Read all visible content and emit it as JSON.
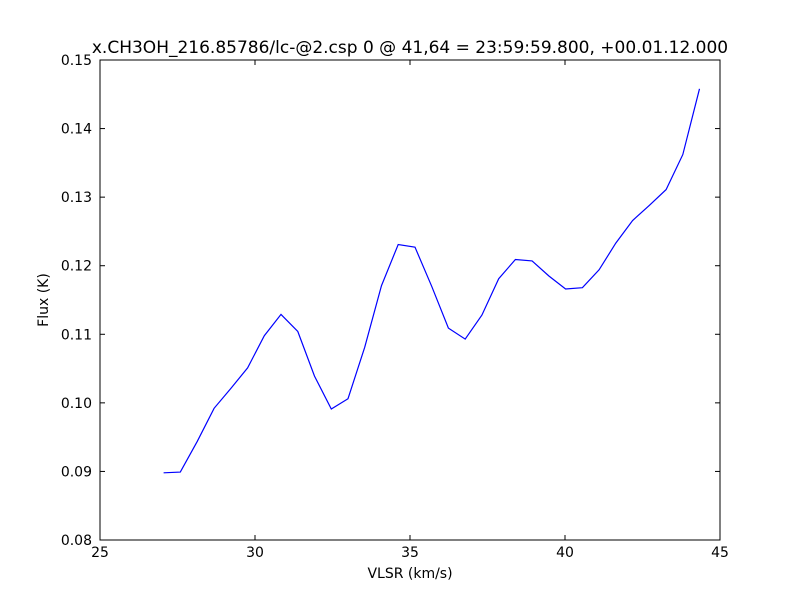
{
  "chart_data": {
    "type": "line",
    "title": "x.CH3OH_216.85786/lc-@2.csp 0 @ 41,64 = 23:59:59.800, +00.01.12.000",
    "xlabel": "VLSR (km/s)",
    "ylabel": "Flux (K)",
    "xlim": [
      25,
      45
    ],
    "ylim": [
      0.08,
      0.15
    ],
    "xticks": [
      "25",
      "30",
      "35",
      "40",
      "45"
    ],
    "yticks": [
      "0.08",
      "0.09",
      "0.10",
      "0.11",
      "0.12",
      "0.13",
      "0.14",
      "0.15"
    ],
    "grid": false,
    "line_color": "#0000ff",
    "series": [
      {
        "x": [
          27.05,
          27.59,
          28.14,
          28.68,
          29.22,
          29.76,
          30.3,
          30.84,
          31.38,
          31.92,
          32.46,
          33.0,
          33.54,
          34.08,
          34.62,
          35.16,
          35.7,
          36.24,
          36.78,
          37.32,
          37.86,
          38.4,
          38.94,
          39.48,
          40.02,
          40.56,
          41.1,
          41.64,
          42.18,
          42.72,
          43.26,
          43.8,
          44.34
        ],
        "y": [
          0.0898,
          0.0899,
          0.0944,
          0.0992,
          0.1021,
          0.1051,
          0.1098,
          0.1129,
          0.1104,
          0.1039,
          0.0991,
          0.1006,
          0.1081,
          0.1171,
          0.1231,
          0.1227,
          0.117,
          0.1109,
          0.1093,
          0.1128,
          0.1181,
          0.1209,
          0.1207,
          0.1185,
          0.1166,
          0.1168,
          0.1194,
          0.1233,
          0.1266,
          0.1288,
          0.1311,
          0.1362,
          0.1458
        ]
      }
    ]
  }
}
